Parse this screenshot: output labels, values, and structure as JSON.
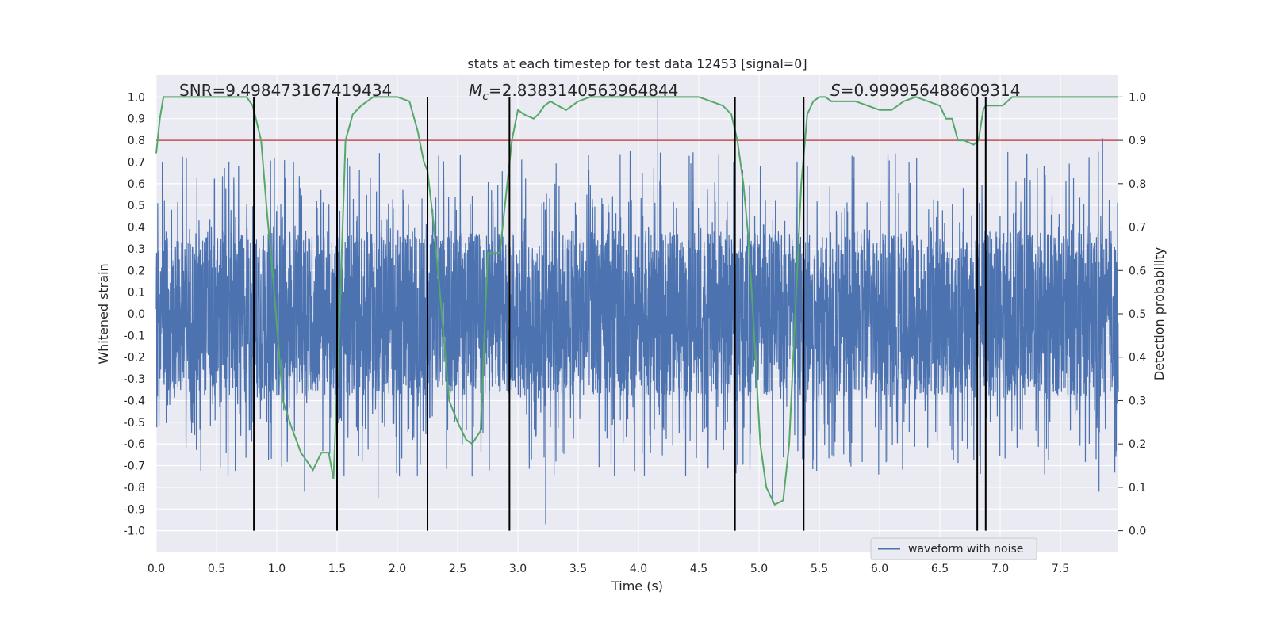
{
  "chart_data": {
    "type": "line",
    "title": "stats at each timestep for test data 12453 [signal=0]",
    "xlabel": "Time (s)",
    "ylabel": "Whitened strain",
    "y2label": "Detection probability",
    "xlim": [
      0.0,
      7.98
    ],
    "ylim": [
      -1.1,
      1.1
    ],
    "y2lim": [
      -0.05,
      1.05
    ],
    "x_ticks": [
      "0.0",
      "0.5",
      "1.0",
      "1.5",
      "2.0",
      "2.5",
      "3.0",
      "3.5",
      "4.0",
      "4.5",
      "5.0",
      "5.5",
      "6.0",
      "6.5",
      "7.0",
      "7.5"
    ],
    "y_ticks": [
      "1.0",
      "0.9",
      "0.8",
      "0.7",
      "0.6",
      "0.5",
      "0.4",
      "0.3",
      "0.2",
      "0.1",
      "0.0",
      "-0.1",
      "-0.2",
      "-0.3",
      "-0.4",
      "-0.5",
      "-0.6",
      "-0.7",
      "-0.8",
      "-0.9",
      "-1.0"
    ],
    "y2_ticks": [
      "1.0",
      "0.9",
      "0.8",
      "0.7",
      "0.6",
      "0.5",
      "0.4",
      "0.3",
      "0.2",
      "0.1",
      "0.0"
    ],
    "annotations": {
      "snr": "SNR=9.498473167419434",
      "mc_symbol": "M",
      "mc_subscript": "c",
      "mc_value": "=2.8383140563964844",
      "s_symbol": "S",
      "s_value": "=0.999956488609314"
    },
    "legend": {
      "label": "waveform with noise",
      "position": "lower-right"
    },
    "threshold": {
      "y2": 0.9,
      "color": "#c44e52"
    },
    "vertical_lines": [
      0.81,
      1.5,
      2.25,
      2.93,
      4.8,
      5.37,
      6.81,
      6.88
    ],
    "series": [
      {
        "name": "waveform with noise",
        "color": "#4c72b0",
        "kind": "noise",
        "core_amplitude": 0.38,
        "spike_examples": [
          {
            "x": 0.05,
            "y": 0.7
          },
          {
            "x": 0.25,
            "y": 0.72
          },
          {
            "x": 0.98,
            "y": 0.72
          },
          {
            "x": 1.23,
            "y": -0.82
          },
          {
            "x": 1.84,
            "y": -0.85
          },
          {
            "x": 2.62,
            "y": -0.75
          },
          {
            "x": 3.23,
            "y": -0.97
          },
          {
            "x": 4.16,
            "y": 0.99
          },
          {
            "x": 5.11,
            "y": -0.87
          },
          {
            "x": 7.85,
            "y": 0.81
          },
          {
            "x": 7.82,
            "y": -0.82
          }
        ]
      },
      {
        "name": "Detection probability",
        "color": "#55a868",
        "axis": "right",
        "x": [
          0.0,
          0.03,
          0.06,
          0.1,
          0.2,
          0.4,
          0.6,
          0.7,
          0.75,
          0.8,
          0.87,
          0.92,
          0.97,
          1.05,
          1.12,
          1.2,
          1.3,
          1.37,
          1.43,
          1.47,
          1.51,
          1.57,
          1.63,
          1.7,
          1.8,
          1.9,
          2.0,
          2.1,
          2.17,
          2.22,
          2.25,
          2.3,
          2.35,
          2.43,
          2.5,
          2.57,
          2.62,
          2.69,
          2.75,
          2.85,
          2.95,
          3.0,
          3.05,
          3.13,
          3.17,
          3.22,
          3.27,
          3.33,
          3.4,
          3.5,
          3.6,
          3.7,
          3.8,
          4.0,
          4.5,
          4.6,
          4.7,
          4.77,
          4.82,
          4.87,
          4.91,
          4.95,
          5.01,
          5.06,
          5.13,
          5.2,
          5.25,
          5.3,
          5.35,
          5.4,
          5.45,
          5.5,
          5.55,
          5.6,
          5.8,
          5.9,
          6.0,
          6.1,
          6.2,
          6.3,
          6.4,
          6.5,
          6.55,
          6.6,
          6.65,
          6.7,
          6.78,
          6.82,
          6.86,
          6.88,
          6.95,
          7.02,
          7.1,
          7.2,
          7.98
        ],
        "y": [
          0.87,
          0.95,
          1.0,
          1.0,
          1.0,
          1.0,
          1.0,
          1.0,
          1.0,
          0.98,
          0.9,
          0.73,
          0.58,
          0.3,
          0.24,
          0.18,
          0.14,
          0.18,
          0.18,
          0.12,
          0.4,
          0.9,
          0.96,
          0.98,
          1.0,
          1.0,
          1.0,
          0.99,
          0.92,
          0.85,
          0.83,
          0.71,
          0.56,
          0.3,
          0.25,
          0.21,
          0.2,
          0.23,
          0.64,
          0.64,
          0.9,
          0.97,
          0.96,
          0.95,
          0.96,
          0.98,
          0.99,
          0.98,
          0.97,
          0.99,
          1.0,
          1.0,
          1.0,
          1.0,
          1.0,
          0.99,
          0.98,
          0.96,
          0.9,
          0.8,
          0.68,
          0.5,
          0.2,
          0.1,
          0.06,
          0.07,
          0.2,
          0.5,
          0.8,
          0.96,
          0.99,
          1.0,
          1.0,
          0.99,
          0.99,
          0.98,
          0.97,
          0.97,
          0.99,
          1.0,
          0.99,
          0.98,
          0.95,
          0.95,
          0.9,
          0.9,
          0.89,
          0.9,
          0.97,
          0.98,
          0.98,
          0.98,
          1.0,
          1.0,
          1.0
        ]
      }
    ]
  }
}
